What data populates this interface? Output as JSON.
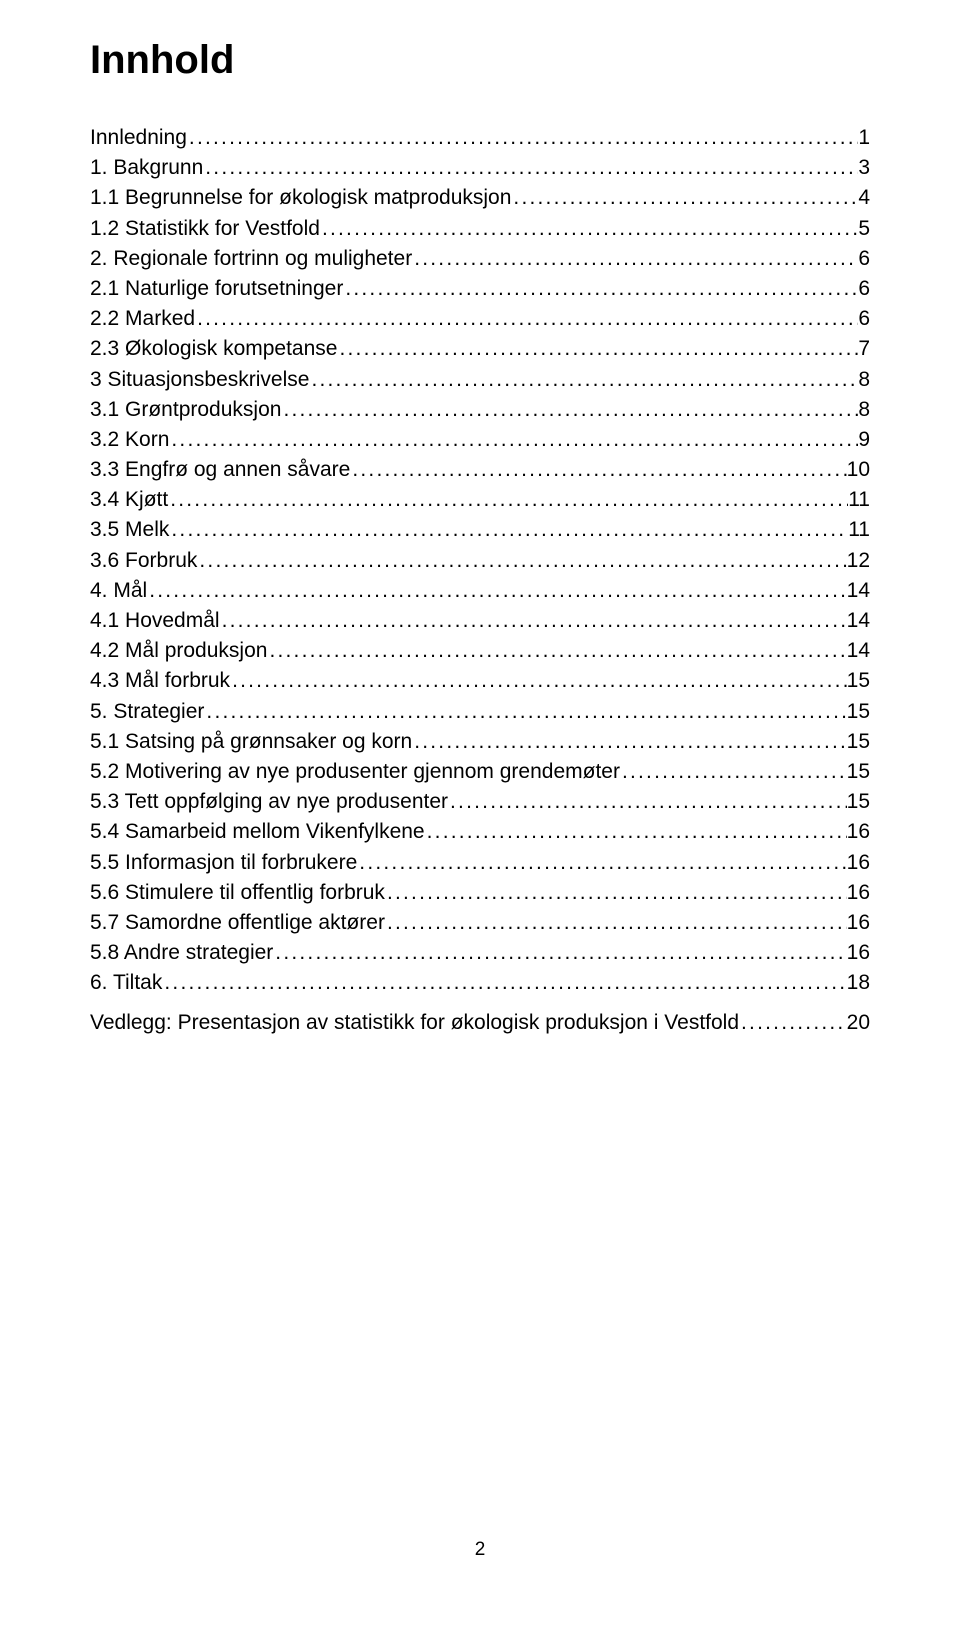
{
  "title": "Innhold",
  "page_number": "2",
  "text_color": "#000000",
  "background_color": "#ffffff",
  "title_fontsize": 40,
  "body_fontsize": 21,
  "toc": [
    {
      "label": "Innledning",
      "page": "1",
      "indent": 0
    },
    {
      "label": "1. Bakgrunn",
      "page": "3",
      "indent": 0
    },
    {
      "label": "1.1 Begrunnelse for økologisk matproduksjon",
      "page": "4",
      "indent": 1
    },
    {
      "label": "1.2 Statistikk for Vestfold",
      "page": "5",
      "indent": 1
    },
    {
      "label": "2. Regionale fortrinn og muligheter",
      "page": "6",
      "indent": 0
    },
    {
      "label": "2.1 Naturlige forutsetninger",
      "page": "6",
      "indent": 1
    },
    {
      "label": "2.2 Marked",
      "page": "6",
      "indent": 1
    },
    {
      "label": "2.3 Økologisk kompetanse",
      "page": "7",
      "indent": 1
    },
    {
      "label": "3 Situasjonsbeskrivelse",
      "page": "8",
      "indent": 0
    },
    {
      "label": "3.1 Grøntproduksjon",
      "page": "8",
      "indent": 1
    },
    {
      "label": "3.2 Korn",
      "page": "9",
      "indent": 1
    },
    {
      "label": "3.3 Engfrø og annen såvare",
      "page": "10",
      "indent": 1
    },
    {
      "label": "3.4 Kjøtt",
      "page": "11",
      "indent": 1
    },
    {
      "label": "3.5 Melk",
      "page": "11",
      "indent": 1
    },
    {
      "label": "3.6 Forbruk",
      "page": "12",
      "indent": 1
    },
    {
      "label": "4. Mål",
      "page": "14",
      "indent": 0
    },
    {
      "label": "4.1 Hovedmål",
      "page": "14",
      "indent": 1
    },
    {
      "label": "4.2 Mål produksjon",
      "page": "14",
      "indent": 1
    },
    {
      "label": "4.3 Mål forbruk",
      "page": "15",
      "indent": 1
    },
    {
      "label": "5. Strategier",
      "page": "15",
      "indent": 0
    },
    {
      "label": "5.1 Satsing på grønnsaker og korn",
      "page": "15",
      "indent": 1
    },
    {
      "label": "5.2 Motivering av nye produsenter gjennom grendemøter",
      "page": "15",
      "indent": 1
    },
    {
      "label": "5.3 Tett oppfølging av nye produsenter",
      "page": "15",
      "indent": 1
    },
    {
      "label": "5.4 Samarbeid mellom Vikenfylkene",
      "page": "16",
      "indent": 1
    },
    {
      "label": "5.5 Informasjon til forbrukere",
      "page": "16",
      "indent": 1
    },
    {
      "label": "5.6 Stimulere til offentlig forbruk",
      "page": "16",
      "indent": 1
    },
    {
      "label": "5.7 Samordne offentlige aktører",
      "page": "16",
      "indent": 1
    },
    {
      "label": "5.8 Andre strategier",
      "page": "16",
      "indent": 1
    },
    {
      "label": "6. Tiltak",
      "page": "18",
      "indent": 0
    }
  ],
  "appendix": {
    "label": "Vedlegg: Presentasjon av statistikk for økologisk produksjon i Vestfold",
    "page": "20"
  }
}
